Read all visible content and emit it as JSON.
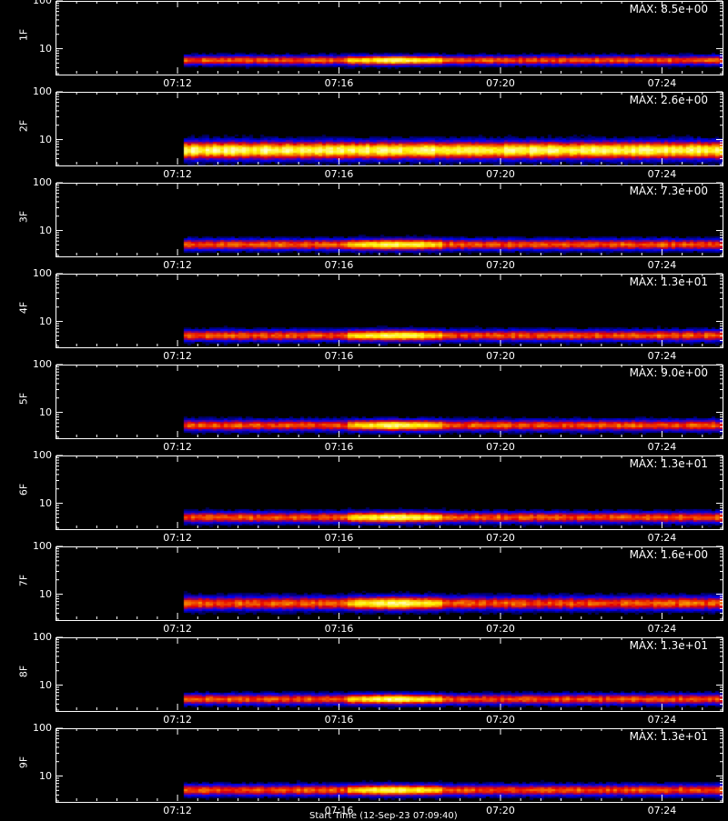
{
  "chart_data": [
    {
      "type": "heatmap",
      "ylabel": "1F",
      "max_label": "MAX: 8.5e+00",
      "max": 8.5,
      "yscale": "log",
      "ylim": [
        3,
        100
      ],
      "yticks": [
        "100",
        "10"
      ],
      "x_ticks": [
        "07:12",
        "07:16",
        "07:20",
        "07:24"
      ],
      "xlim": [
        "07:09",
        "07:25:30"
      ],
      "data_start": "07:12:10",
      "band": {
        "center": 6.2,
        "width": 1.5
      },
      "peak": {
        "start": "07:16:10",
        "end": "07:18:30"
      }
    },
    {
      "type": "heatmap",
      "ylabel": "2F",
      "max_label": "MAX: 2.6e+00",
      "max": 2.6,
      "yscale": "log",
      "ylim": [
        3,
        100
      ],
      "yticks": [
        "100",
        "10"
      ],
      "x_ticks": [
        "07:12",
        "07:16",
        "07:20",
        "07:24"
      ],
      "xlim": [
        "07:09",
        "07:25:30"
      ],
      "data_start": "07:12:10",
      "band": {
        "center": 6.5,
        "width": 3.2
      },
      "peak": {
        "start": "07:12:10",
        "end": "07:25:30"
      }
    },
    {
      "type": "heatmap",
      "ylabel": "3F",
      "max_label": "MAX: 7.3e+00",
      "max": 7.3,
      "yscale": "log",
      "ylim": [
        3,
        100
      ],
      "yticks": [
        "100",
        "10"
      ],
      "x_ticks": [
        "07:12",
        "07:16",
        "07:20",
        "07:24"
      ],
      "xlim": [
        "07:09",
        "07:25:30"
      ],
      "data_start": "07:12:10",
      "band": {
        "center": 5.5,
        "width": 1.6
      },
      "peak": {
        "start": "07:16:10",
        "end": "07:18:30"
      }
    },
    {
      "type": "heatmap",
      "ylabel": "4F",
      "max_label": "MAX: 1.3e+01",
      "max": 13,
      "yscale": "log",
      "ylim": [
        3,
        100
      ],
      "yticks": [
        "100",
        "10"
      ],
      "x_ticks": [
        "07:12",
        "07:16",
        "07:20",
        "07:24"
      ],
      "xlim": [
        "07:09",
        "07:25:30"
      ],
      "data_start": "07:12:10",
      "band": {
        "center": 5.5,
        "width": 1.6
      },
      "peak": {
        "start": "07:16:10",
        "end": "07:18:30"
      }
    },
    {
      "type": "heatmap",
      "ylabel": "5F",
      "max_label": "MAX: 9.0e+00",
      "max": 9.0,
      "yscale": "log",
      "ylim": [
        3,
        100
      ],
      "yticks": [
        "100",
        "10"
      ],
      "x_ticks": [
        "07:12",
        "07:16",
        "07:20",
        "07:24"
      ],
      "xlim": [
        "07:09",
        "07:25:30"
      ],
      "data_start": "07:12:10",
      "band": {
        "center": 5.8,
        "width": 1.7
      },
      "peak": {
        "start": "07:16:10",
        "end": "07:18:30"
      }
    },
    {
      "type": "heatmap",
      "ylabel": "6F",
      "max_label": "MAX: 1.3e+01",
      "max": 13,
      "yscale": "log",
      "ylim": [
        3,
        100
      ],
      "yticks": [
        "100",
        "10"
      ],
      "x_ticks": [
        "07:12",
        "07:16",
        "07:20",
        "07:24"
      ],
      "xlim": [
        "07:09",
        "07:25:30"
      ],
      "data_start": "07:12:10",
      "band": {
        "center": 5.5,
        "width": 1.6
      },
      "peak": {
        "start": "07:16:10",
        "end": "07:18:30"
      }
    },
    {
      "type": "heatmap",
      "ylabel": "7F",
      "max_label": "MAX: 1.6e+00",
      "max": 1.6,
      "yscale": "log",
      "ylim": [
        3,
        100
      ],
      "yticks": [
        "100",
        "10"
      ],
      "x_ticks": [
        "07:12",
        "07:16",
        "07:20",
        "07:24"
      ],
      "xlim": [
        "07:09",
        "07:25:30"
      ],
      "data_start": "07:12:10",
      "band": {
        "center": 7.0,
        "width": 2.6
      },
      "peak": {
        "start": "07:16:10",
        "end": "07:18:30"
      }
    },
    {
      "type": "heatmap",
      "ylabel": "8F",
      "max_label": "MAX: 1.3e+01",
      "max": 13,
      "yscale": "log",
      "ylim": [
        3,
        100
      ],
      "yticks": [
        "100",
        "10"
      ],
      "x_ticks": [
        "07:12",
        "07:16",
        "07:20",
        "07:24"
      ],
      "xlim": [
        "07:09",
        "07:25:30"
      ],
      "data_start": "07:12:10",
      "band": {
        "center": 5.5,
        "width": 1.5
      },
      "peak": {
        "start": "07:16:10",
        "end": "07:18:30"
      }
    },
    {
      "type": "heatmap",
      "ylabel": "9F",
      "max_label": "MAX: 1.3e+01",
      "max": 13,
      "yscale": "log",
      "ylim": [
        3,
        100
      ],
      "yticks": [
        "100",
        "10"
      ],
      "x_ticks": [
        "07:12",
        "07:16",
        "07:20",
        "07:24"
      ],
      "xlim": [
        "07:09",
        "07:25:30"
      ],
      "data_start": "07:12:10",
      "band": {
        "center": 5.5,
        "width": 1.6
      },
      "peak": {
        "start": "07:16:10",
        "end": "07:18:30"
      }
    }
  ],
  "footer": "Start Time (12-Sep-23 07:09:40)",
  "colors": {
    "background": "#000000",
    "axis": "#ffffff"
  }
}
